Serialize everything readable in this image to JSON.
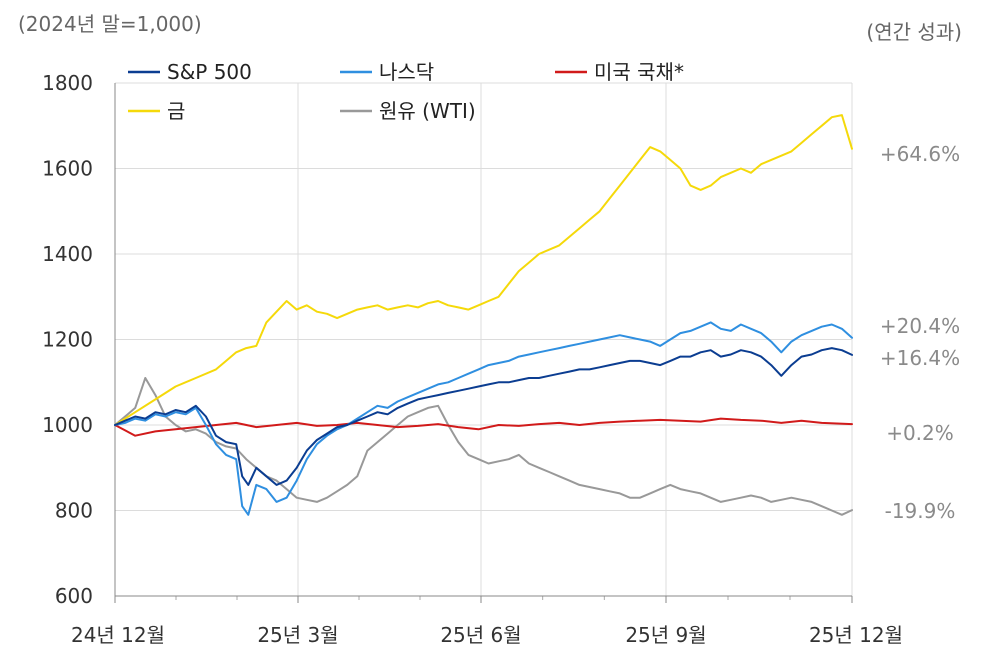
{
  "chart_data": {
    "type": "line",
    "subtitle_left": "(2024년 말=1,000)",
    "subtitle_right": "(연간 성과)",
    "x_tick_labels": [
      "24년 12월",
      "25년 3월",
      "25년 6월",
      "25년 9월",
      "25년 12월"
    ],
    "ylim": [
      600,
      1800
    ],
    "y_ticks": [
      600,
      800,
      1000,
      1200,
      1400,
      1600,
      1800
    ],
    "y_tick_labels": [
      "600",
      "800",
      "1000",
      "1200",
      "1400",
      "1600",
      "1800"
    ],
    "grid": true,
    "legend_position": "top-left",
    "series": [
      {
        "name": "S&P 500",
        "color": "#0b3d91",
        "final_label": "+16.4%",
        "x": [
          0,
          5,
          10,
          15,
          20,
          25,
          30,
          35,
          40,
          45,
          50,
          55,
          60,
          63,
          66,
          70,
          75,
          80,
          85,
          90,
          95,
          100,
          105,
          110,
          115,
          120,
          125,
          130,
          135,
          140,
          145,
          150,
          155,
          160,
          165,
          170,
          175,
          180,
          185,
          190,
          195,
          200,
          205,
          210,
          215,
          220,
          225,
          230,
          235,
          240,
          245,
          250,
          255,
          260,
          265,
          270,
          275,
          280,
          285,
          290,
          295,
          300,
          305,
          310,
          315,
          320,
          325,
          330,
          335,
          340,
          345,
          350,
          355,
          360,
          365
        ],
        "values": [
          1000,
          1010,
          1020,
          1015,
          1030,
          1025,
          1035,
          1030,
          1045,
          1020,
          975,
          960,
          955,
          880,
          860,
          900,
          880,
          860,
          870,
          900,
          940,
          965,
          980,
          995,
          1000,
          1010,
          1020,
          1030,
          1025,
          1040,
          1050,
          1060,
          1065,
          1070,
          1075,
          1080,
          1085,
          1090,
          1095,
          1100,
          1100,
          1105,
          1110,
          1110,
          1115,
          1120,
          1125,
          1130,
          1130,
          1135,
          1140,
          1145,
          1150,
          1150,
          1145,
          1140,
          1150,
          1160,
          1160,
          1170,
          1175,
          1160,
          1165,
          1175,
          1170,
          1160,
          1140,
          1115,
          1140,
          1160,
          1165,
          1175,
          1180,
          1175,
          1164
        ]
      },
      {
        "name": "나스닥",
        "color": "#2f8fe0",
        "final_label": "+20.4%",
        "x": [
          0,
          5,
          10,
          15,
          20,
          25,
          30,
          35,
          40,
          45,
          50,
          55,
          60,
          63,
          66,
          70,
          75,
          80,
          85,
          90,
          95,
          100,
          105,
          110,
          115,
          120,
          125,
          130,
          135,
          140,
          145,
          150,
          155,
          160,
          165,
          170,
          175,
          180,
          185,
          190,
          195,
          200,
          205,
          210,
          215,
          220,
          225,
          230,
          235,
          240,
          245,
          250,
          255,
          260,
          265,
          270,
          275,
          280,
          285,
          290,
          295,
          300,
          305,
          310,
          315,
          320,
          325,
          330,
          335,
          340,
          345,
          350,
          355,
          360,
          365
        ],
        "values": [
          1000,
          1005,
          1015,
          1010,
          1025,
          1020,
          1030,
          1025,
          1040,
          1000,
          955,
          930,
          920,
          810,
          790,
          860,
          850,
          820,
          830,
          870,
          920,
          955,
          975,
          990,
          1000,
          1015,
          1030,
          1045,
          1040,
          1055,
          1065,
          1075,
          1085,
          1095,
          1100,
          1110,
          1120,
          1130,
          1140,
          1145,
          1150,
          1160,
          1165,
          1170,
          1175,
          1180,
          1185,
          1190,
          1195,
          1200,
          1205,
          1210,
          1205,
          1200,
          1195,
          1185,
          1200,
          1215,
          1220,
          1230,
          1240,
          1225,
          1220,
          1235,
          1225,
          1215,
          1195,
          1170,
          1195,
          1210,
          1220,
          1230,
          1235,
          1225,
          1204
        ]
      },
      {
        "name": "미국 국채*",
        "color": "#d11a1a",
        "final_label": "+0.2%",
        "x": [
          0,
          10,
          20,
          30,
          40,
          50,
          60,
          70,
          80,
          90,
          100,
          110,
          120,
          130,
          140,
          150,
          160,
          170,
          180,
          190,
          200,
          210,
          220,
          230,
          240,
          250,
          260,
          270,
          280,
          290,
          300,
          310,
          320,
          330,
          340,
          350,
          365
        ],
        "values": [
          1000,
          975,
          985,
          990,
          995,
          1000,
          1005,
          995,
          1000,
          1005,
          998,
          1000,
          1005,
          1000,
          995,
          998,
          1002,
          995,
          990,
          1000,
          998,
          1002,
          1005,
          1000,
          1005,
          1008,
          1010,
          1012,
          1010,
          1008,
          1015,
          1012,
          1010,
          1005,
          1010,
          1005,
          1002
        ]
      },
      {
        "name": "금",
        "color": "#f5d90a",
        "final_label": "+64.6%",
        "x": [
          0,
          10,
          20,
          30,
          40,
          50,
          55,
          60,
          65,
          70,
          75,
          80,
          85,
          90,
          95,
          100,
          105,
          110,
          115,
          120,
          125,
          130,
          135,
          140,
          145,
          150,
          155,
          160,
          165,
          170,
          175,
          180,
          185,
          190,
          195,
          200,
          205,
          210,
          215,
          220,
          225,
          230,
          235,
          240,
          245,
          250,
          255,
          260,
          265,
          270,
          275,
          280,
          285,
          290,
          295,
          300,
          305,
          310,
          315,
          320,
          325,
          330,
          335,
          340,
          345,
          350,
          355,
          360,
          365
        ],
        "values": [
          1000,
          1030,
          1060,
          1090,
          1110,
          1130,
          1150,
          1170,
          1180,
          1185,
          1240,
          1265,
          1290,
          1270,
          1280,
          1265,
          1260,
          1250,
          1260,
          1270,
          1275,
          1280,
          1270,
          1275,
          1280,
          1275,
          1285,
          1290,
          1280,
          1275,
          1270,
          1280,
          1290,
          1300,
          1330,
          1360,
          1380,
          1400,
          1410,
          1420,
          1440,
          1460,
          1480,
          1500,
          1530,
          1560,
          1590,
          1620,
          1650,
          1640,
          1620,
          1600,
          1560,
          1550,
          1560,
          1580,
          1590,
          1600,
          1590,
          1610,
          1620,
          1630,
          1640,
          1660,
          1680,
          1700,
          1720,
          1725,
          1646
        ]
      },
      {
        "name": "원유 (WTI)",
        "color": "#999999",
        "final_label": "-19.9%",
        "x": [
          0,
          5,
          10,
          15,
          20,
          25,
          30,
          35,
          40,
          45,
          50,
          55,
          60,
          65,
          70,
          75,
          80,
          85,
          90,
          95,
          100,
          105,
          110,
          115,
          120,
          125,
          130,
          135,
          140,
          145,
          150,
          155,
          160,
          165,
          170,
          175,
          180,
          185,
          190,
          195,
          200,
          205,
          210,
          215,
          220,
          225,
          230,
          235,
          240,
          245,
          250,
          255,
          260,
          265,
          270,
          275,
          280,
          285,
          290,
          295,
          300,
          305,
          310,
          315,
          320,
          325,
          330,
          335,
          340,
          345,
          350,
          355,
          360,
          365
        ],
        "values": [
          1000,
          1020,
          1040,
          1110,
          1070,
          1020,
          1000,
          985,
          990,
          980,
          960,
          950,
          945,
          920,
          900,
          880,
          870,
          850,
          830,
          825,
          820,
          830,
          845,
          860,
          880,
          940,
          960,
          980,
          1000,
          1020,
          1030,
          1040,
          1045,
          1000,
          960,
          930,
          920,
          910,
          915,
          920,
          930,
          910,
          900,
          890,
          880,
          870,
          860,
          855,
          850,
          845,
          840,
          830,
          830,
          840,
          850,
          860,
          850,
          845,
          840,
          830,
          820,
          825,
          830,
          835,
          830,
          820,
          825,
          830,
          825,
          820,
          810,
          800,
          790,
          801
        ]
      }
    ]
  }
}
